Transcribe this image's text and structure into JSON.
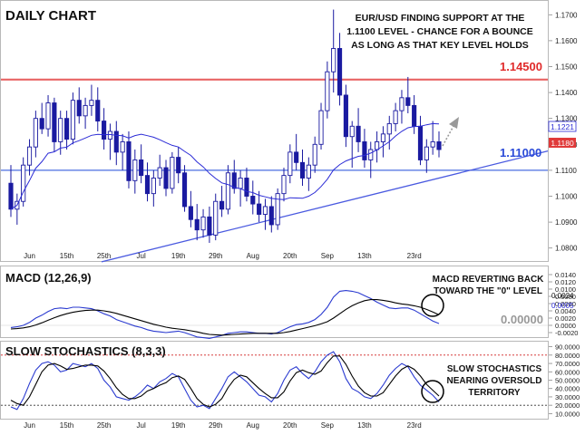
{
  "panels": {
    "price": {
      "title": "DAILY CHART",
      "annotation": [
        "EUR/USD FINDING SUPPORT AT THE",
        "1.1100 LEVEL - CHANCE FOR A BOUNCE",
        "AS LONG AS THAT KEY LEVEL HOLDS"
      ],
      "resistance_label": "1.14500",
      "support_label": "1.11000",
      "ma_label": "1.1221",
      "last_label": "1.1180"
    },
    "macd": {
      "title": "MACD (12,26,9)",
      "annotation": [
        "MACD REVERTING BACK",
        "TOWARD THE \"0\" LEVEL"
      ],
      "zero_label": "0.00000",
      "value_labels": [
        "0.0024",
        "0.0005"
      ]
    },
    "stoch": {
      "title": "SLOW STOCHASTICS (8,3,3)",
      "annotation": [
        "SLOW STOCHASTICS",
        "NEARING OVERSOLD",
        "TERRITORY"
      ]
    }
  },
  "x_labels": [
    "Jun",
    "15th",
    "25th",
    "Jul",
    "19th",
    "29th",
    "Aug",
    "20th",
    "Sep",
    "13th",
    "23rd"
  ],
  "colors": {
    "up": "#ffffff",
    "down": "#1a1aa0",
    "ma": "#2b2bd6",
    "resistance": "#e03030",
    "support": "#4a6ee0",
    "trendline": "#4a5ae0",
    "macd": "#2a3ad0",
    "signal": "#000000",
    "ob_os": "#d02020"
  },
  "chart_data": [
    {
      "type": "candlestick",
      "title": "DAILY CHART",
      "ylim": [
        1.075,
        1.175
      ],
      "yticks": [
        1.08,
        1.09,
        1.1,
        1.11,
        1.12,
        1.13,
        1.14,
        1.15,
        1.16,
        1.17
      ],
      "ohlc": [
        [
          1.105,
          1.112,
          1.092,
          1.095
        ],
        [
          1.095,
          1.101,
          1.089,
          1.098
        ],
        [
          1.098,
          1.115,
          1.096,
          1.112
        ],
        [
          1.112,
          1.122,
          1.108,
          1.119
        ],
        [
          1.119,
          1.133,
          1.115,
          1.13
        ],
        [
          1.13,
          1.136,
          1.124,
          1.126
        ],
        [
          1.126,
          1.139,
          1.123,
          1.136
        ],
        [
          1.136,
          1.138,
          1.117,
          1.121
        ],
        [
          1.121,
          1.133,
          1.116,
          1.13
        ],
        [
          1.13,
          1.133,
          1.118,
          1.122
        ],
        [
          1.122,
          1.14,
          1.12,
          1.137
        ],
        [
          1.137,
          1.142,
          1.128,
          1.131
        ],
        [
          1.131,
          1.138,
          1.126,
          1.135
        ],
        [
          1.135,
          1.143,
          1.131,
          1.137
        ],
        [
          1.137,
          1.142,
          1.125,
          1.129
        ],
        [
          1.129,
          1.134,
          1.118,
          1.122
        ],
        [
          1.122,
          1.128,
          1.114,
          1.125
        ],
        [
          1.125,
          1.129,
          1.112,
          1.117
        ],
        [
          1.117,
          1.124,
          1.11,
          1.121
        ],
        [
          1.121,
          1.125,
          1.103,
          1.106
        ],
        [
          1.106,
          1.118,
          1.101,
          1.114
        ],
        [
          1.114,
          1.12,
          1.105,
          1.108
        ],
        [
          1.108,
          1.113,
          1.098,
          1.101
        ],
        [
          1.101,
          1.11,
          1.096,
          1.107
        ],
        [
          1.107,
          1.116,
          1.104,
          1.111
        ],
        [
          1.111,
          1.114,
          1.1,
          1.103
        ],
        [
          1.103,
          1.117,
          1.101,
          1.115
        ],
        [
          1.115,
          1.119,
          1.105,
          1.109
        ],
        [
          1.109,
          1.112,
          1.094,
          1.096
        ],
        [
          1.096,
          1.102,
          1.088,
          1.091
        ],
        [
          1.091,
          1.097,
          1.083,
          1.087
        ],
        [
          1.087,
          1.095,
          1.084,
          1.092
        ],
        [
          1.092,
          1.096,
          1.082,
          1.085
        ],
        [
          1.085,
          1.101,
          1.083,
          1.098
        ],
        [
          1.098,
          1.104,
          1.092,
          1.095
        ],
        [
          1.095,
          1.112,
          1.093,
          1.109
        ],
        [
          1.109,
          1.114,
          1.101,
          1.103
        ],
        [
          1.103,
          1.11,
          1.096,
          1.107
        ],
        [
          1.107,
          1.111,
          1.098,
          1.1
        ],
        [
          1.1,
          1.106,
          1.093,
          1.097
        ],
        [
          1.097,
          1.102,
          1.09,
          1.093
        ],
        [
          1.093,
          1.099,
          1.087,
          1.096
        ],
        [
          1.096,
          1.1,
          1.086,
          1.089
        ],
        [
          1.089,
          1.103,
          1.087,
          1.101
        ],
        [
          1.101,
          1.111,
          1.098,
          1.108
        ],
        [
          1.108,
          1.12,
          1.105,
          1.117
        ],
        [
          1.117,
          1.124,
          1.11,
          1.113
        ],
        [
          1.113,
          1.118,
          1.104,
          1.107
        ],
        [
          1.107,
          1.115,
          1.102,
          1.112
        ],
        [
          1.112,
          1.123,
          1.109,
          1.12
        ],
        [
          1.12,
          1.136,
          1.118,
          1.133
        ],
        [
          1.133,
          1.152,
          1.13,
          1.148
        ],
        [
          1.148,
          1.172,
          1.14,
          1.157
        ],
        [
          1.157,
          1.163,
          1.135,
          1.139
        ],
        [
          1.139,
          1.143,
          1.119,
          1.123
        ],
        [
          1.123,
          1.129,
          1.111,
          1.127
        ],
        [
          1.127,
          1.134,
          1.117,
          1.121
        ],
        [
          1.121,
          1.126,
          1.111,
          1.114
        ],
        [
          1.114,
          1.121,
          1.107,
          1.118
        ],
        [
          1.118,
          1.125,
          1.113,
          1.121
        ],
        [
          1.121,
          1.127,
          1.115,
          1.124
        ],
        [
          1.124,
          1.131,
          1.118,
          1.128
        ],
        [
          1.128,
          1.136,
          1.125,
          1.133
        ],
        [
          1.133,
          1.141,
          1.128,
          1.138
        ],
        [
          1.138,
          1.146,
          1.132,
          1.135
        ],
        [
          1.135,
          1.139,
          1.124,
          1.127
        ],
        [
          1.127,
          1.131,
          1.112,
          1.114
        ],
        [
          1.114,
          1.122,
          1.109,
          1.119
        ],
        [
          1.119,
          1.129,
          1.116,
          1.121
        ],
        [
          1.121,
          1.125,
          1.115,
          1.118
        ]
      ],
      "ma_period": 20,
      "resistance": 1.145,
      "support": 1.11,
      "trendline": [
        [
          0,
          1.066
        ],
        [
          69,
          1.107
        ]
      ]
    },
    {
      "type": "line",
      "title": "MACD (12,26,9)",
      "ylim": [
        -0.003,
        0.016
      ],
      "yticks": [
        -0.002,
        0.0,
        0.002,
        0.004,
        0.006,
        0.008,
        0.01,
        0.012,
        0.014
      ],
      "series": [
        {
          "name": "MACD",
          "values": [
            -0.0006,
            -0.0004,
            0.0,
            0.0008,
            0.002,
            0.0028,
            0.0038,
            0.0046,
            0.0048,
            0.0046,
            0.005,
            0.005,
            0.0048,
            0.0046,
            0.004,
            0.0032,
            0.0026,
            0.0016,
            0.001,
            0.0004,
            -0.0002,
            -0.0006,
            -0.0012,
            -0.0016,
            -0.0018,
            -0.002,
            -0.0018,
            -0.0016,
            -0.002,
            -0.0026,
            -0.0032,
            -0.0034,
            -0.0036,
            -0.0032,
            -0.0028,
            -0.0022,
            -0.002,
            -0.0018,
            -0.0018,
            -0.002,
            -0.0022,
            -0.0022,
            -0.0024,
            -0.002,
            -0.0012,
            -0.0004,
            0.0002,
            0.0004,
            0.0008,
            0.0016,
            0.003,
            0.005,
            0.0078,
            0.0094,
            0.0096,
            0.0094,
            0.009,
            0.0082,
            0.0074,
            0.0064,
            0.0056,
            0.0048,
            0.0046,
            0.0048,
            0.0048,
            0.0042,
            0.0032,
            0.0022,
            0.0012,
            0.0005
          ]
        },
        {
          "name": "Signal",
          "values": [
            -0.001,
            -0.0009,
            -0.0007,
            -0.0004,
            0.0001,
            0.0007,
            0.0014,
            0.0021,
            0.0027,
            0.0032,
            0.0036,
            0.0039,
            0.0041,
            0.0042,
            0.0042,
            0.004,
            0.0037,
            0.0033,
            0.0028,
            0.0023,
            0.0018,
            0.0013,
            0.0008,
            0.0003,
            -0.0001,
            -0.0005,
            -0.0008,
            -0.001,
            -0.0012,
            -0.0015,
            -0.0018,
            -0.0022,
            -0.0025,
            -0.0026,
            -0.0027,
            -0.0026,
            -0.0025,
            -0.0024,
            -0.0023,
            -0.0022,
            -0.0022,
            -0.0022,
            -0.0022,
            -0.0022,
            -0.002,
            -0.0017,
            -0.0013,
            -0.0009,
            -0.0005,
            -0.0001,
            0.0004,
            0.001,
            0.002,
            0.0032,
            0.0044,
            0.0054,
            0.0062,
            0.0068,
            0.0071,
            0.0071,
            0.0069,
            0.0066,
            0.0062,
            0.0059,
            0.0057,
            0.0054,
            0.005,
            0.0044,
            0.0037,
            0.0029
          ]
        }
      ]
    },
    {
      "type": "line",
      "title": "SLOW STOCHASTICS (8,3,3)",
      "ylim": [
        5,
        95
      ],
      "yticks": [
        10,
        20,
        30,
        40,
        50,
        60,
        70,
        80,
        90
      ],
      "levels": [
        80,
        20
      ],
      "series": [
        {
          "name": "%K",
          "values": [
            18,
            15,
            28,
            46,
            62,
            70,
            72,
            68,
            60,
            62,
            70,
            68,
            66,
            70,
            64,
            50,
            42,
            30,
            28,
            26,
            30,
            36,
            44,
            40,
            48,
            52,
            58,
            54,
            40,
            26,
            18,
            20,
            16,
            28,
            40,
            54,
            60,
            54,
            48,
            40,
            32,
            30,
            24,
            34,
            50,
            62,
            66,
            58,
            52,
            60,
            72,
            80,
            84,
            72,
            52,
            40,
            36,
            30,
            28,
            34,
            44,
            56,
            64,
            70,
            66,
            54,
            44,
            38,
            32,
            24
          ]
        },
        {
          "name": "%D",
          "values": [
            26,
            22,
            20,
            30,
            45,
            60,
            68,
            70,
            67,
            63,
            64,
            66,
            68,
            68,
            67,
            61,
            52,
            41,
            33,
            28,
            28,
            31,
            37,
            40,
            44,
            47,
            53,
            55,
            51,
            40,
            28,
            21,
            18,
            21,
            28,
            41,
            51,
            56,
            54,
            47,
            40,
            34,
            29,
            29,
            36,
            49,
            59,
            62,
            59,
            57,
            61,
            71,
            79,
            79,
            69,
            55,
            43,
            35,
            31,
            31,
            35,
            45,
            55,
            63,
            67,
            63,
            55,
            45,
            38,
            31
          ]
        }
      ]
    }
  ]
}
